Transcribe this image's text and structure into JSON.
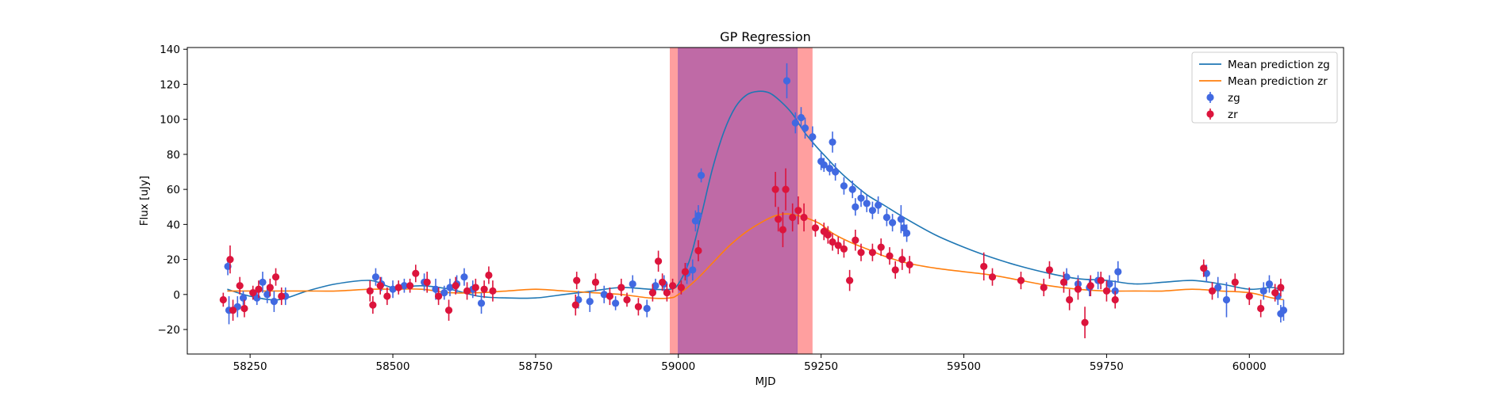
{
  "chart_data": {
    "type": "scatter",
    "title": "GP Regression",
    "xlabel": "MJD",
    "ylabel": "Flux [uJy]",
    "xlim": [
      58140,
      60165
    ],
    "ylim": [
      -34,
      141
    ],
    "xticks": [
      58250,
      58500,
      58750,
      59000,
      59250,
      59500,
      59750,
      60000
    ],
    "yticks": [
      -20,
      0,
      20,
      40,
      60,
      80,
      100,
      120,
      140
    ],
    "grid": false,
    "legend_position": "top-right",
    "legend": [
      "Mean prediction zg",
      "Mean prediction zr",
      "zg",
      "zr"
    ],
    "colors": {
      "zg_line": "#1f77b4",
      "zr_line": "#ff7f0e",
      "zg_points": "#4169e1",
      "zr_points": "#dc143c",
      "band_outer": "#ff9f9f",
      "band_inner": "#bf6aa6"
    },
    "shaded_regions": [
      {
        "name": "outer-band",
        "x0": 58985,
        "x1": 59235
      },
      {
        "name": "inner-band",
        "x0": 59000,
        "x1": 59208
      }
    ],
    "series": [
      {
        "name": "Mean prediction zg",
        "kind": "line",
        "x": [
          58210,
          58250,
          58300,
          58350,
          58400,
          58460,
          58500,
          58550,
          58600,
          58650,
          58700,
          58750,
          58800,
          58850,
          58900,
          58950,
          58985,
          59000,
          59020,
          59040,
          59060,
          59080,
          59100,
          59120,
          59140,
          59160,
          59180,
          59200,
          59220,
          59240,
          59260,
          59280,
          59300,
          59330,
          59360,
          59400,
          59450,
          59500,
          59550,
          59600,
          59650,
          59700,
          59750,
          59800,
          59850,
          59900,
          59950,
          60000,
          60040,
          60060
        ],
        "y": [
          3,
          -1,
          -3,
          2,
          6,
          8,
          4,
          5,
          3,
          -1,
          -2,
          -2,
          0,
          2,
          4,
          3,
          3,
          6,
          20,
          45,
          72,
          93,
          107,
          114,
          116,
          115,
          110,
          103,
          93,
          85,
          78,
          71,
          65,
          57,
          51,
          43,
          34,
          27,
          21,
          16,
          12,
          9,
          8,
          6,
          7,
          8,
          6,
          3,
          4,
          2
        ]
      },
      {
        "name": "Mean prediction zr",
        "kind": "line",
        "x": [
          58210,
          58250,
          58300,
          58350,
          58400,
          58460,
          58500,
          58550,
          58600,
          58650,
          58700,
          58750,
          58800,
          58850,
          58900,
          58950,
          58985,
          59000,
          59030,
          59060,
          59090,
          59120,
          59150,
          59170,
          59190,
          59210,
          59230,
          59250,
          59270,
          59300,
          59330,
          59360,
          59400,
          59450,
          59500,
          59550,
          59600,
          59650,
          59700,
          59750,
          59800,
          59850,
          59900,
          59950,
          60000,
          60040,
          60060
        ],
        "y": [
          2,
          2,
          2,
          2,
          2,
          3,
          3,
          3,
          1,
          1,
          2,
          3,
          2,
          1,
          0,
          -2,
          -2,
          0,
          8,
          18,
          28,
          36,
          42,
          45,
          46,
          45,
          43,
          40,
          35,
          30,
          26,
          22,
          18,
          15,
          13,
          11,
          8,
          5,
          3,
          2,
          2,
          2,
          3,
          2,
          1,
          -2,
          -3
        ]
      },
      {
        "name": "zg",
        "kind": "errorbar",
        "points": [
          [
            58211,
            16,
            5
          ],
          [
            58213,
            -9,
            8
          ],
          [
            58228,
            -7,
            6
          ],
          [
            58238,
            -2,
            4
          ],
          [
            58262,
            -2,
            4
          ],
          [
            58272,
            7,
            6
          ],
          [
            58280,
            0,
            5
          ],
          [
            58292,
            -4,
            6
          ],
          [
            58312,
            -1,
            5
          ],
          [
            58470,
            10,
            5
          ],
          [
            58480,
            6,
            4
          ],
          [
            58500,
            3,
            5
          ],
          [
            58520,
            5,
            4
          ],
          [
            58555,
            7,
            5
          ],
          [
            58575,
            3,
            6
          ],
          [
            58590,
            1,
            4
          ],
          [
            58600,
            4,
            5
          ],
          [
            58612,
            6,
            5
          ],
          [
            58625,
            10,
            5
          ],
          [
            58640,
            3,
            5
          ],
          [
            58655,
            -5,
            6
          ],
          [
            58825,
            -3,
            5
          ],
          [
            58845,
            -4,
            6
          ],
          [
            58870,
            0,
            5
          ],
          [
            58890,
            -5,
            4
          ],
          [
            58920,
            6,
            5
          ],
          [
            58945,
            -8,
            5
          ],
          [
            58960,
            5,
            4
          ],
          [
            58975,
            6,
            5
          ],
          [
            59015,
            12,
            6
          ],
          [
            59025,
            14,
            6
          ],
          [
            59030,
            42,
            6
          ],
          [
            59035,
            45,
            6
          ],
          [
            59040,
            68,
            4
          ],
          [
            59190,
            122,
            10
          ],
          [
            59205,
            98,
            6
          ],
          [
            59215,
            101,
            6
          ],
          [
            59222,
            95,
            6
          ],
          [
            59235,
            90,
            6
          ],
          [
            59250,
            76,
            5
          ],
          [
            59255,
            74,
            4
          ],
          [
            59265,
            72,
            4
          ],
          [
            59270,
            87,
            6
          ],
          [
            59275,
            70,
            5
          ],
          [
            59290,
            62,
            5
          ],
          [
            59305,
            60,
            5
          ],
          [
            59310,
            50,
            5
          ],
          [
            59320,
            55,
            5
          ],
          [
            59330,
            52,
            5
          ],
          [
            59340,
            48,
            5
          ],
          [
            59350,
            51,
            5
          ],
          [
            59365,
            44,
            5
          ],
          [
            59375,
            41,
            5
          ],
          [
            59390,
            43,
            8
          ],
          [
            59395,
            38,
            5
          ],
          [
            59400,
            35,
            5
          ],
          [
            59680,
            10,
            5
          ],
          [
            59700,
            6,
            5
          ],
          [
            59720,
            4,
            5
          ],
          [
            59735,
            8,
            5
          ],
          [
            59755,
            6,
            5
          ],
          [
            59765,
            2,
            6
          ],
          [
            59770,
            13,
            6
          ],
          [
            59925,
            12,
            5
          ],
          [
            59945,
            4,
            6
          ],
          [
            59960,
            -3,
            10
          ],
          [
            60025,
            2,
            5
          ],
          [
            60035,
            6,
            5
          ],
          [
            60050,
            -1,
            5
          ],
          [
            60055,
            -11,
            5
          ],
          [
            60060,
            -9,
            6
          ]
        ]
      },
      {
        "name": "zr",
        "kind": "errorbar",
        "points": [
          [
            58203,
            -3,
            4
          ],
          [
            58215,
            20,
            8
          ],
          [
            58220,
            -9,
            6
          ],
          [
            58232,
            5,
            5
          ],
          [
            58240,
            -8,
            5
          ],
          [
            58255,
            1,
            4
          ],
          [
            58265,
            3,
            5
          ],
          [
            58285,
            4,
            5
          ],
          [
            58295,
            10,
            5
          ],
          [
            58305,
            -1,
            5
          ],
          [
            58460,
            2,
            6
          ],
          [
            58465,
            -6,
            5
          ],
          [
            58478,
            5,
            5
          ],
          [
            58490,
            -1,
            5
          ],
          [
            58510,
            4,
            4
          ],
          [
            58530,
            5,
            4
          ],
          [
            58540,
            12,
            5
          ],
          [
            58560,
            7,
            6
          ],
          [
            58580,
            -1,
            5
          ],
          [
            58598,
            -9,
            6
          ],
          [
            58610,
            5,
            5
          ],
          [
            58630,
            2,
            5
          ],
          [
            58645,
            4,
            5
          ],
          [
            58660,
            3,
            5
          ],
          [
            58668,
            11,
            5
          ],
          [
            58675,
            2,
            6
          ],
          [
            58820,
            -6,
            6
          ],
          [
            58822,
            8,
            5
          ],
          [
            58855,
            7,
            5
          ],
          [
            58880,
            -1,
            5
          ],
          [
            58900,
            4,
            5
          ],
          [
            58910,
            -3,
            4
          ],
          [
            58930,
            -7,
            5
          ],
          [
            58955,
            1,
            5
          ],
          [
            58965,
            19,
            6
          ],
          [
            58972,
            7,
            5
          ],
          [
            58980,
            1,
            5
          ],
          [
            58990,
            5,
            4
          ],
          [
            59005,
            4,
            4
          ],
          [
            59012,
            13,
            5
          ],
          [
            59035,
            25,
            6
          ],
          [
            59170,
            60,
            10
          ],
          [
            59175,
            43,
            7
          ],
          [
            59183,
            37,
            10
          ],
          [
            59188,
            60,
            12
          ],
          [
            59200,
            44,
            8
          ],
          [
            59210,
            48,
            8
          ],
          [
            59220,
            44,
            8
          ],
          [
            59240,
            38,
            5
          ],
          [
            59255,
            36,
            5
          ],
          [
            59262,
            34,
            5
          ],
          [
            59270,
            30,
            5
          ],
          [
            59280,
            28,
            5
          ],
          [
            59290,
            26,
            5
          ],
          [
            59300,
            8,
            6
          ],
          [
            59310,
            31,
            6
          ],
          [
            59320,
            24,
            5
          ],
          [
            59340,
            24,
            5
          ],
          [
            59355,
            27,
            5
          ],
          [
            59370,
            22,
            5
          ],
          [
            59380,
            14,
            5
          ],
          [
            59392,
            20,
            6
          ],
          [
            59405,
            17,
            5
          ],
          [
            59535,
            16,
            8
          ],
          [
            59550,
            10,
            5
          ],
          [
            59600,
            8,
            5
          ],
          [
            59640,
            4,
            5
          ],
          [
            59650,
            14,
            5
          ],
          [
            59675,
            7,
            6
          ],
          [
            59685,
            -3,
            6
          ],
          [
            59700,
            3,
            6
          ],
          [
            59712,
            -16,
            9
          ],
          [
            59722,
            5,
            6
          ],
          [
            59740,
            8,
            5
          ],
          [
            59750,
            2,
            6
          ],
          [
            59765,
            -3,
            5
          ],
          [
            59920,
            15,
            5
          ],
          [
            59935,
            2,
            5
          ],
          [
            59975,
            7,
            5
          ],
          [
            60000,
            -1,
            5
          ],
          [
            60020,
            -8,
            5
          ],
          [
            60045,
            1,
            5
          ],
          [
            60055,
            4,
            5
          ]
        ]
      }
    ]
  }
}
